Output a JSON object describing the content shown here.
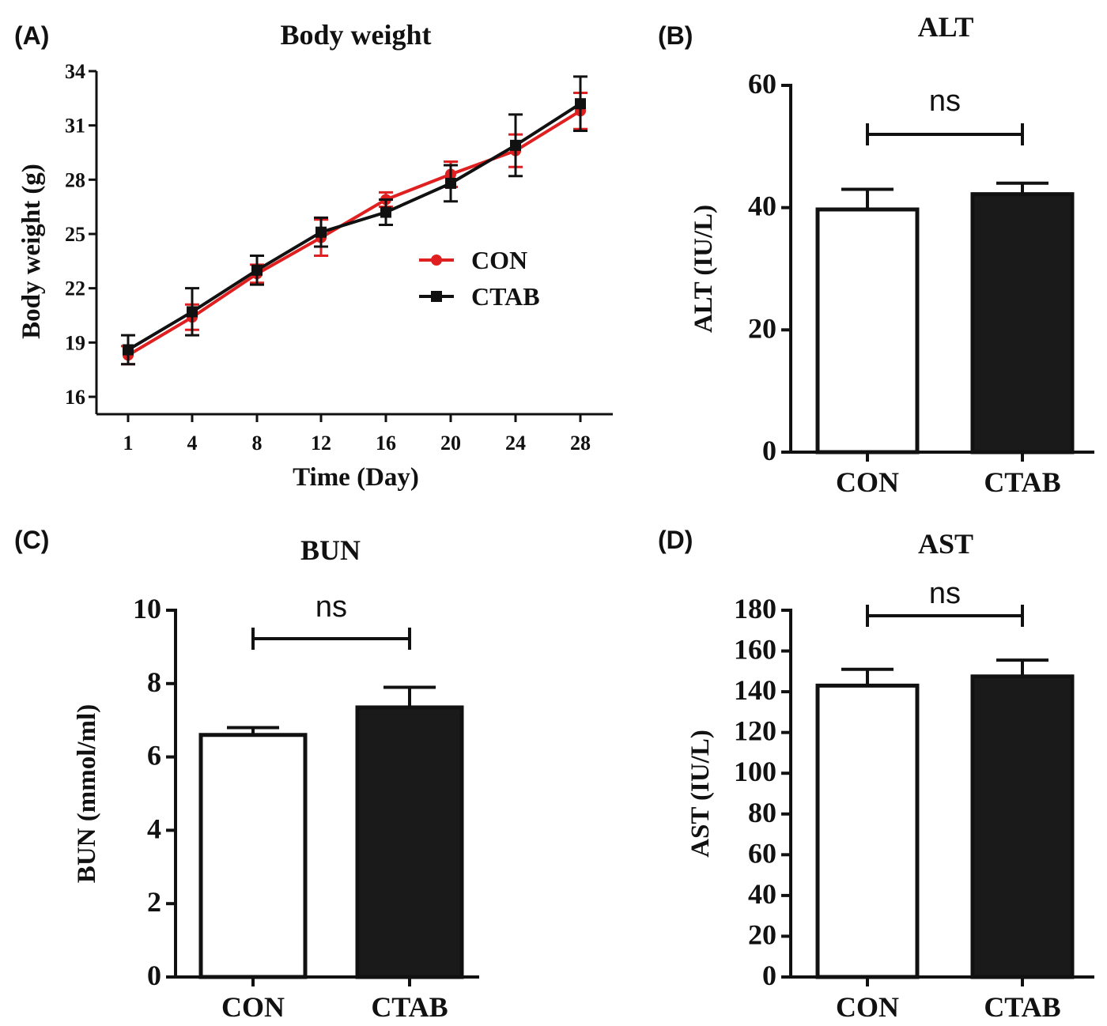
{
  "colors": {
    "con_line": "#e02020",
    "ctab_line": "#111111",
    "con_bar": "#ffffff",
    "ctab_bar": "#1a1a1a",
    "axis": "#111111"
  },
  "chart_data": [
    {
      "panel": "(A)",
      "type": "line",
      "title": "Body weight",
      "xlabel": "Time (Day)",
      "ylabel": "Body weight (g)",
      "categories": [
        "1",
        "4",
        "8",
        "12",
        "16",
        "20",
        "24",
        "28"
      ],
      "yticks": [
        16,
        19,
        22,
        25,
        28,
        31,
        34
      ],
      "ylim": [
        16,
        34
      ],
      "series": [
        {
          "name": "CON",
          "color": "#e02020",
          "values": [
            18.3,
            20.4,
            22.8,
            24.8,
            26.9,
            28.3,
            29.6,
            31.8
          ],
          "err": [
            0.5,
            0.7,
            0.5,
            1.0,
            0.4,
            0.7,
            0.9,
            1.0
          ]
        },
        {
          "name": "CTAB",
          "color": "#111111",
          "values": [
            18.6,
            20.7,
            23.0,
            25.1,
            26.2,
            27.8,
            29.9,
            32.2
          ],
          "err": [
            0.8,
            1.3,
            0.8,
            0.8,
            0.7,
            1.0,
            1.7,
            1.5
          ]
        }
      ]
    },
    {
      "panel": "(B)",
      "type": "bar",
      "title": "ALT",
      "ylabel": "ALT (IU/L)",
      "categories": [
        "CON",
        "CTAB"
      ],
      "values": [
        39.7,
        42.2
      ],
      "err": [
        3.3,
        1.8
      ],
      "yticks": [
        0,
        20,
        40,
        60
      ],
      "ylim": [
        0,
        60
      ],
      "significance": "ns"
    },
    {
      "panel": "(C)",
      "type": "bar",
      "title": "BUN",
      "ylabel": "BUN (mmol/ml)",
      "categories": [
        "CON",
        "CTAB"
      ],
      "values": [
        6.6,
        7.35
      ],
      "err": [
        0.2,
        0.55
      ],
      "yticks": [
        0,
        2,
        4,
        6,
        8,
        10
      ],
      "ylim": [
        0,
        10
      ],
      "significance": "ns"
    },
    {
      "panel": "(D)",
      "type": "bar",
      "title": "AST",
      "ylabel": "AST (IU/L)",
      "categories": [
        "CON",
        "CTAB"
      ],
      "values": [
        143,
        147.5
      ],
      "err": [
        8,
        8
      ],
      "yticks": [
        0,
        20,
        40,
        60,
        80,
        100,
        120,
        140,
        160,
        180
      ],
      "ylim": [
        0,
        180
      ],
      "significance": "ns"
    }
  ]
}
